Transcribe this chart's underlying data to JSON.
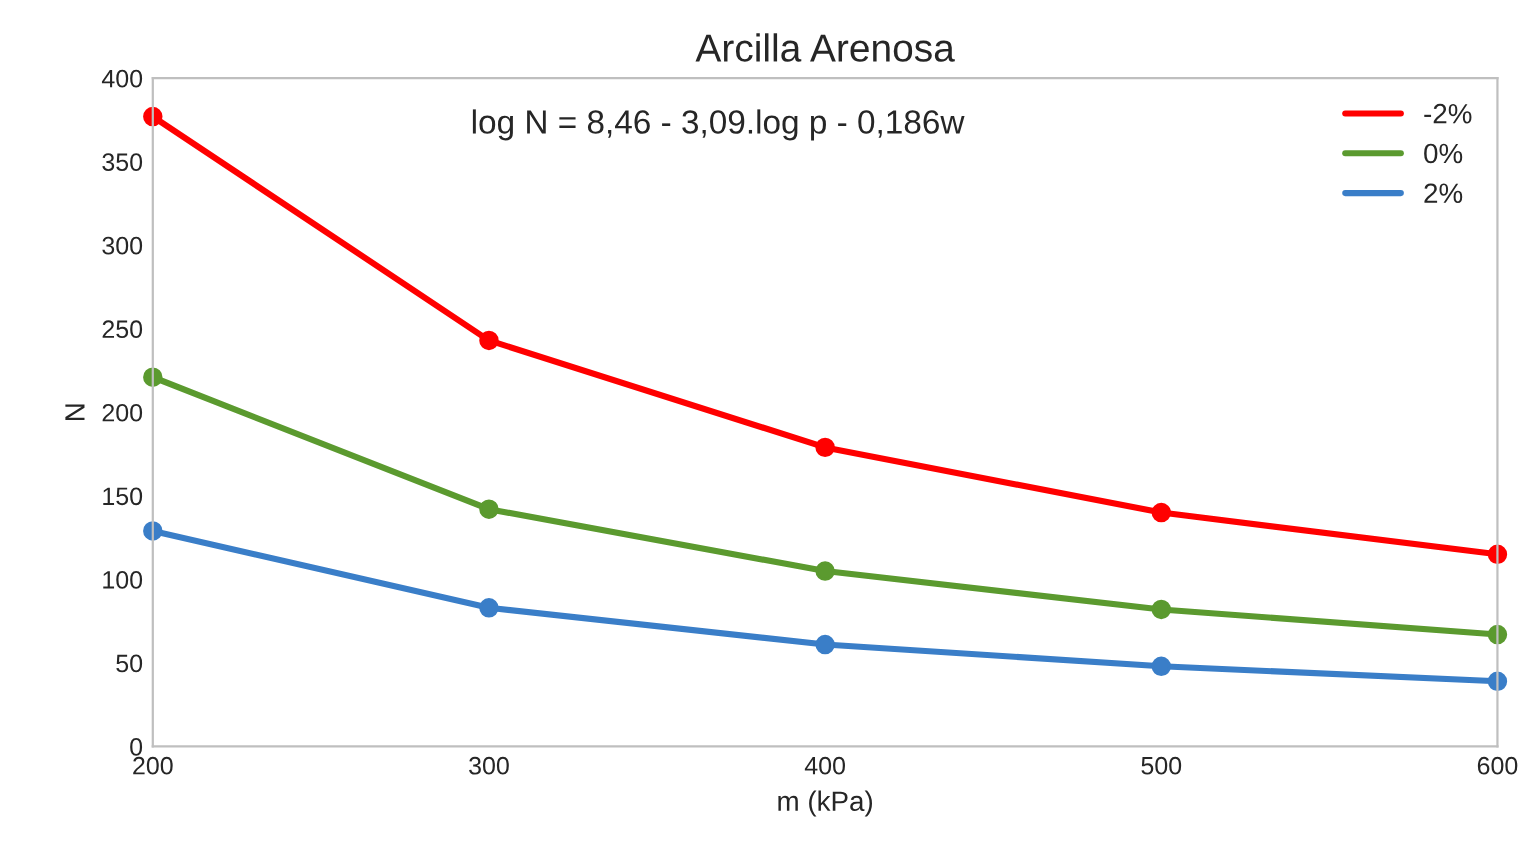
{
  "chart_data": {
    "type": "line",
    "title": "Arcilla Arenosa",
    "xlabel": "m (kPa)",
    "ylabel": "N",
    "x": [
      200,
      300,
      400,
      500,
      600
    ],
    "series": [
      {
        "name": "-2%",
        "color": "#ff0000",
        "values": [
          377,
          243,
          179,
          140,
          115
        ]
      },
      {
        "name": "0%",
        "color": "#5b9a2f",
        "values": [
          221,
          142,
          105,
          82,
          67
        ]
      },
      {
        "name": "2%",
        "color": "#3a7ec8",
        "values": [
          129,
          83,
          61,
          48,
          39
        ]
      }
    ],
    "xlim": [
      200,
      600
    ],
    "xticks": [
      200,
      300,
      400,
      500,
      600
    ],
    "ylim": [
      0,
      400
    ],
    "yticks": [
      0,
      50,
      100,
      150,
      200,
      250,
      300,
      350,
      400
    ],
    "annotations": [
      "log N = 8,46 - 3,09.log p - 0,186w"
    ],
    "marker": "circle",
    "line_style": "solid",
    "legend": "top right",
    "grid": false
  }
}
